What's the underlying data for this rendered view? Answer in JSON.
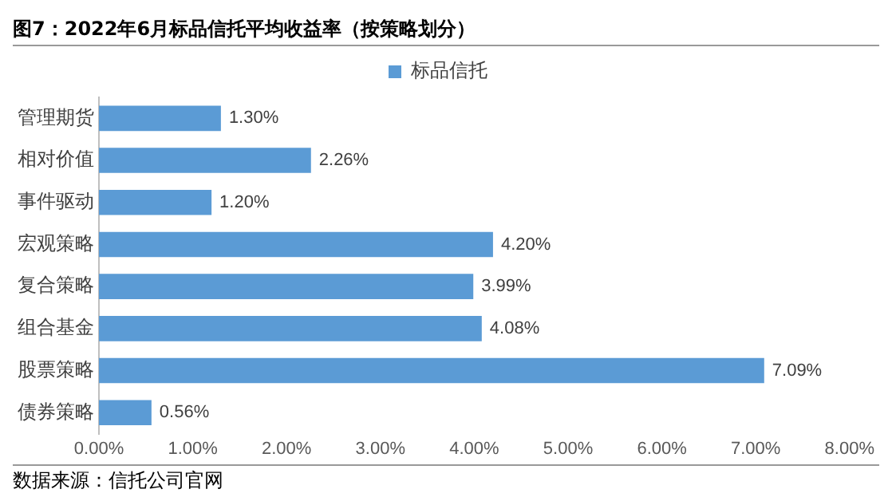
{
  "chart_data": {
    "type": "bar",
    "orientation": "horizontal",
    "title": "图7：2022年6月标品信托平均收益率（按策略划分）",
    "categories": [
      "管理期货",
      "相对价值",
      "事件驱动",
      "宏观策略",
      "复合策略",
      "组合基金",
      "股票策略",
      "债券策略"
    ],
    "series": [
      {
        "name": "标品信托",
        "color": "#5b9bd5",
        "values": [
          1.3,
          2.26,
          1.2,
          4.2,
          3.99,
          4.08,
          7.09,
          0.56
        ],
        "value_labels": [
          "1.30%",
          "2.26%",
          "1.20%",
          "4.20%",
          "3.99%",
          "4.08%",
          "7.09%",
          "0.56%"
        ]
      }
    ],
    "xlim": [
      0,
      8
    ],
    "xticks": [
      {
        "value": 0,
        "label": "0.00%"
      },
      {
        "value": 1,
        "label": "1.00%"
      },
      {
        "value": 2,
        "label": "2.00%"
      },
      {
        "value": 3,
        "label": "3.00%"
      },
      {
        "value": 4,
        "label": "4.00%"
      },
      {
        "value": 5,
        "label": "5.00%"
      },
      {
        "value": 6,
        "label": "6.00%"
      },
      {
        "value": 7,
        "label": "7.00%"
      },
      {
        "value": 8,
        "label": "8.00%"
      }
    ],
    "grid": false,
    "legend": "top",
    "annotations": [
      "数据来源：信托公司官网"
    ]
  }
}
